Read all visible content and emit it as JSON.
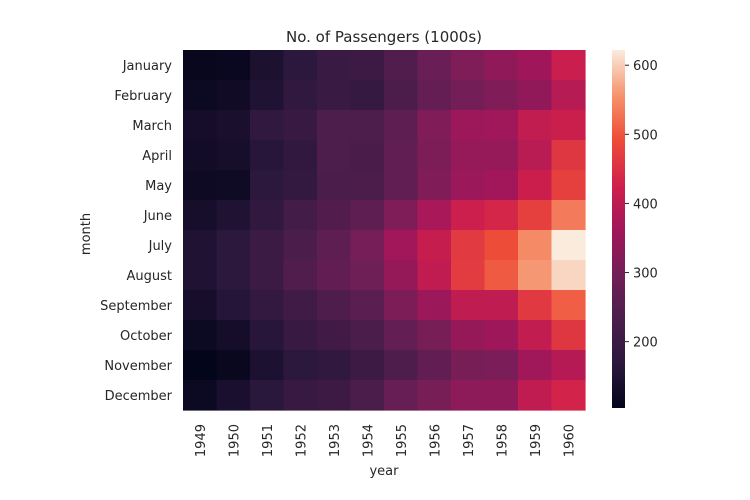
{
  "chart_data": {
    "type": "heatmap",
    "title": "No. of Passengers (1000s)",
    "xlabel": "year",
    "ylabel": "month",
    "x": [
      "1949",
      "1950",
      "1951",
      "1952",
      "1953",
      "1954",
      "1955",
      "1956",
      "1957",
      "1958",
      "1959",
      "1960"
    ],
    "y": [
      "January",
      "February",
      "March",
      "April",
      "May",
      "June",
      "July",
      "August",
      "September",
      "October",
      "November",
      "December"
    ],
    "values": [
      [
        112,
        115,
        145,
        171,
        196,
        204,
        242,
        284,
        315,
        340,
        360,
        417
      ],
      [
        118,
        126,
        150,
        180,
        196,
        188,
        233,
        277,
        301,
        318,
        342,
        391
      ],
      [
        132,
        141,
        178,
        193,
        236,
        235,
        267,
        317,
        356,
        362,
        406,
        419
      ],
      [
        129,
        135,
        163,
        181,
        235,
        227,
        269,
        313,
        348,
        348,
        396,
        461
      ],
      [
        121,
        125,
        172,
        183,
        229,
        234,
        270,
        318,
        355,
        363,
        420,
        472
      ],
      [
        135,
        149,
        178,
        218,
        243,
        264,
        315,
        374,
        422,
        435,
        472,
        535
      ],
      [
        148,
        170,
        199,
        230,
        264,
        302,
        364,
        413,
        465,
        491,
        548,
        622
      ],
      [
        148,
        170,
        199,
        242,
        272,
        293,
        347,
        405,
        467,
        505,
        559,
        606
      ],
      [
        136,
        158,
        184,
        209,
        237,
        259,
        312,
        355,
        404,
        404,
        463,
        508
      ],
      [
        119,
        133,
        162,
        191,
        211,
        229,
        274,
        306,
        347,
        359,
        407,
        461
      ],
      [
        104,
        114,
        146,
        172,
        180,
        203,
        237,
        271,
        305,
        310,
        362,
        390
      ],
      [
        118,
        140,
        166,
        194,
        201,
        229,
        278,
        306,
        336,
        337,
        405,
        432
      ]
    ],
    "colorbar": {
      "min": 104,
      "max": 622,
      "ticks": [
        200,
        300,
        400,
        500,
        600
      ]
    },
    "colormap": "rocket",
    "grid": false,
    "legend": "colorbar-right"
  }
}
